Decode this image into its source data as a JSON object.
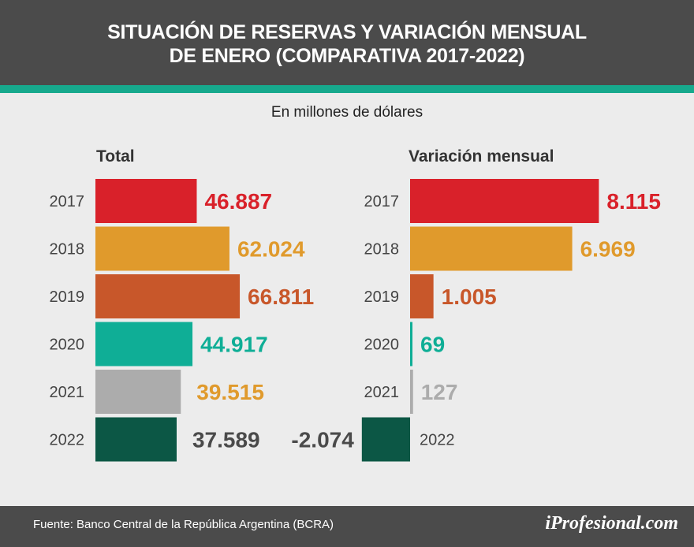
{
  "header": {
    "title_line1": "SITUACIÓN DE RESERVAS Y VARIACIÓN MENSUAL",
    "title_line2": "DE ENERO (COMPARATIVA 2017-2022)"
  },
  "subtitle": "En millones de dólares",
  "footer": {
    "source": "Fuente: Banco Central de la República Argentina (BCRA)",
    "logo": "iProfesional.com"
  },
  "colors": {
    "header_bg": "#4b4b4b",
    "accent_stripe": "#17a98d",
    "background": "#ececec"
  },
  "chart_data": [
    {
      "type": "bar",
      "orientation": "horizontal",
      "title": "Total",
      "categories": [
        "2017",
        "2018",
        "2019",
        "2020",
        "2021",
        "2022"
      ],
      "values": [
        46887,
        62024,
        66811,
        44917,
        39515,
        37589
      ],
      "data_labels": [
        "46.887",
        "62.024",
        "66.811",
        "44.917",
        "39.515",
        "37.589"
      ],
      "bar_colors": [
        "#d9212a",
        "#e09a2c",
        "#c8572a",
        "#0fae96",
        "#acacac",
        "#0c5745"
      ],
      "label_colors": [
        "#d9212a",
        "#e09a2c",
        "#c8572a",
        "#0fae96",
        "#e09a2c",
        "#4a4a4a"
      ]
    },
    {
      "type": "bar",
      "orientation": "horizontal",
      "title": "Variación mensual",
      "categories": [
        "2017",
        "2018",
        "2019",
        "2020",
        "2021",
        "2022"
      ],
      "values": [
        8115,
        6969,
        1005,
        69,
        127,
        -2074
      ],
      "data_labels": [
        "8.115",
        "6.969",
        "1.005",
        "69",
        "127",
        "-2.074"
      ],
      "bar_colors": [
        "#d9212a",
        "#e09a2c",
        "#c8572a",
        "#0fae96",
        "#acacac",
        "#0c5745"
      ],
      "label_colors": [
        "#d9212a",
        "#e09a2c",
        "#c8572a",
        "#0fae96",
        "#acacac",
        "#4a4a4a"
      ]
    }
  ]
}
